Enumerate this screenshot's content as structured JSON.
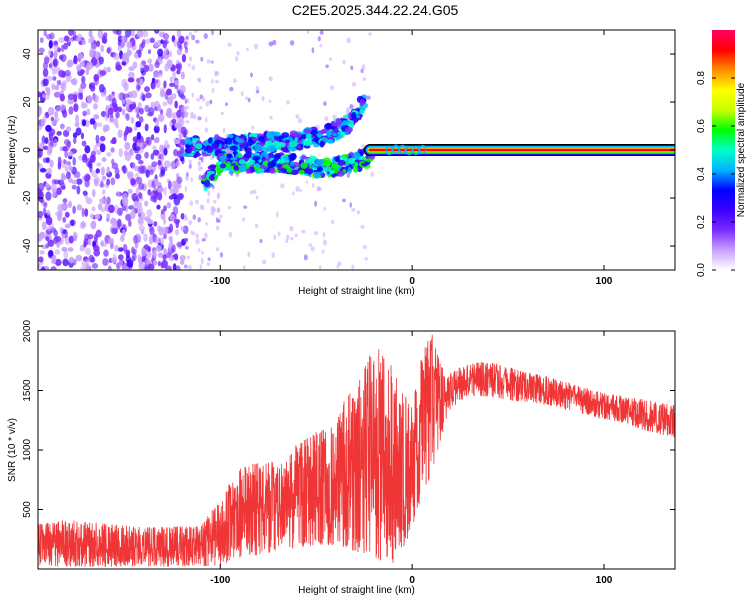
{
  "title": "C2E5.2025.344.22.24.G05",
  "chart_data": [
    {
      "type": "heatmap",
      "xlabel": "Height of straight line (km)",
      "ylabel": "Frequency (Hz)",
      "xlim": [
        -195,
        137
      ],
      "ylim": [
        -50,
        50
      ],
      "x_ticks": [
        -100,
        0,
        100
      ],
      "y_ticks": [
        -40,
        -20,
        0,
        20,
        40
      ],
      "colorbar": {
        "label": "Normalized spectral amplitude",
        "range": [
          0,
          1
        ],
        "ticks": [
          0.0,
          0.2,
          0.4,
          0.6,
          0.8
        ],
        "tick_labels": [
          "0.0",
          "0.2",
          "0.4",
          "0.6",
          "0.8"
        ],
        "colors": [
          "#ffffff",
          "#c8a0ff",
          "#7a2bff",
          "#3a00ff",
          "#0000ff",
          "#00b4ff",
          "#00ffc8",
          "#00ff00",
          "#c8ff00",
          "#ffff00",
          "#ff8c00",
          "#ff0000",
          "#ff0066"
        ]
      },
      "features": [
        {
          "name": "noise",
          "x_range": [
            -195,
            -118
          ],
          "freq_range": [
            -50,
            50
          ],
          "amplitude": 0.15
        },
        {
          "name": "sparse-noise",
          "x_range": [
            -118,
            -20
          ],
          "freq_range": [
            -50,
            50
          ],
          "amplitude": 0.05
        },
        {
          "name": "upper-branch",
          "x": [
            -118,
            -100,
            -80,
            -60,
            -45,
            -35,
            -30,
            -25
          ],
          "freq": [
            1,
            2,
            3,
            4,
            6,
            10,
            14,
            20
          ],
          "amplitude": 0.3
        },
        {
          "name": "lower-branch",
          "x": [
            -108,
            -100,
            -80,
            -60,
            -45,
            -30,
            -20
          ],
          "freq": [
            -14,
            -6,
            -5,
            -6,
            -8,
            -5,
            -2
          ],
          "amplitude": 0.35
        },
        {
          "name": "carrier-line",
          "x": [
            -22,
            137
          ],
          "freq": [
            0,
            0
          ],
          "amplitude": 1.0
        }
      ]
    },
    {
      "type": "line",
      "xlabel": "Height of straight line (km)",
      "ylabel": "SNR (10 * v/v)",
      "xlim": [
        -195,
        137
      ],
      "ylim": [
        0,
        2000
      ],
      "x_ticks": [
        -100,
        0,
        100
      ],
      "y_ticks": [
        500,
        1000,
        1500,
        2000
      ],
      "color": "#ef3535",
      "series": [
        {
          "name": "SNR",
          "x": [
            -195,
            -180,
            -160,
            -140,
            -120,
            -110,
            -100,
            -90,
            -80,
            -70,
            -60,
            -50,
            -40,
            -35,
            -30,
            -25,
            -20,
            -15,
            -10,
            -5,
            0,
            5,
            10,
            15,
            20,
            25,
            30,
            35,
            40,
            50,
            60,
            70,
            80,
            90,
            100,
            110,
            120,
            130,
            137
          ],
          "envelope_low": [
            20,
            20,
            20,
            20,
            20,
            20,
            30,
            80,
            120,
            150,
            180,
            200,
            200,
            180,
            150,
            120,
            90,
            30,
            30,
            150,
            350,
            600,
            800,
            1100,
            1350,
            1400,
            1450,
            1450,
            1450,
            1420,
            1400,
            1380,
            1340,
            1300,
            1260,
            1230,
            1170,
            1130,
            1100
          ],
          "envelope_high": [
            380,
            420,
            380,
            350,
            360,
            360,
            600,
            850,
            900,
            900,
            1050,
            1150,
            1200,
            1450,
            1500,
            1700,
            1900,
            1800,
            1700,
            1500,
            1400,
            1800,
            2000,
            1700,
            1650,
            1700,
            1720,
            1740,
            1740,
            1700,
            1650,
            1620,
            1570,
            1520,
            1480,
            1450,
            1430,
            1400,
            1380
          ]
        }
      ]
    }
  ]
}
